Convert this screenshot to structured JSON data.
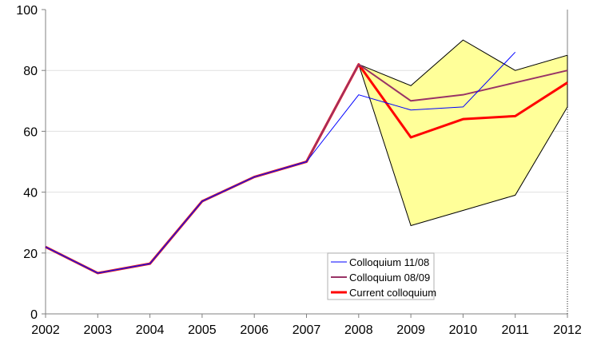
{
  "chart_data": {
    "type": "line",
    "title": "",
    "xlabel": "",
    "ylabel": "",
    "x": [
      2002,
      2003,
      2004,
      2005,
      2006,
      2007,
      2008,
      2009,
      2010,
      2011,
      2012
    ],
    "xlim": [
      2002,
      2012
    ],
    "ylim": [
      0,
      100
    ],
    "yticks": [
      0,
      20,
      40,
      60,
      80,
      100
    ],
    "grid": true,
    "legend_position": "bottom-center",
    "band": {
      "x": [
        2008,
        2009,
        2010,
        2011,
        2012
      ],
      "upper": [
        82,
        75,
        90,
        80,
        85
      ],
      "lower": [
        82,
        29,
        34,
        39,
        68
      ],
      "color": "#ffff99"
    },
    "series": [
      {
        "name": "Colloquium 11/08",
        "color": "#0000ff",
        "width": 1,
        "values": [
          22,
          13.4,
          16.5,
          37,
          45,
          50,
          72,
          67,
          68,
          86,
          null
        ]
      },
      {
        "name": "Colloquium 08/09",
        "color": "#993366",
        "width": 2,
        "values": [
          22,
          13.4,
          16.5,
          37,
          45,
          50,
          82,
          70,
          72,
          76,
          80
        ]
      },
      {
        "name": "Current colloquium",
        "color": "#ff0000",
        "width": 3,
        "values": [
          22,
          13.4,
          16.5,
          37,
          45,
          50,
          82,
          58,
          64,
          65,
          76
        ]
      }
    ]
  }
}
